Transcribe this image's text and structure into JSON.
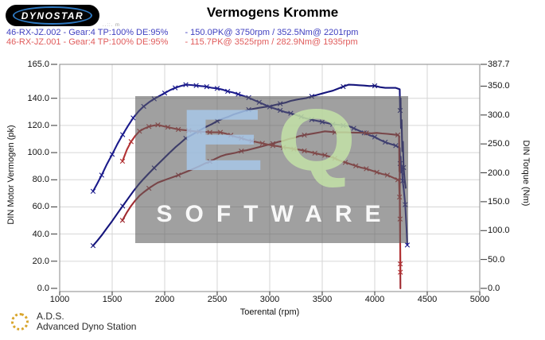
{
  "header": {
    "logo_text": "Dynostar",
    "logo_subtext": "..::. m",
    "title": "Vermogens Kromme"
  },
  "legend": [
    {
      "id": "46-RX-JZ.002 - Gear:4 TP:100% DE:95%",
      "result": "- 150.0PK@ 3750rpm / 352.5Nm@ 2201rpm",
      "color": "#4040c0"
    },
    {
      "id": "46-RX-JZ.001 - Gear:4 TP:100% DE:95%",
      "result": "- 115.7PK@ 3525rpm / 282.9Nm@ 1935rpm",
      "color": "#e05b5b"
    }
  ],
  "watermark": {
    "letter_e": "E",
    "letter_q": "Q",
    "caption": "SOFTWARE"
  },
  "footer": {
    "abbr": "A.D.S.",
    "name": "Advanced Dyno Station"
  },
  "chart_data": {
    "type": "line",
    "title": "Vermogens Kromme",
    "xlabel": "Toerental (rpm)",
    "ylabel_left": "DIN Motor Vermogen (pk)",
    "ylabel_right": "DIN Torque (Nm)",
    "xlim": [
      1000,
      5000
    ],
    "ylim_left": [
      0,
      165
    ],
    "ylim_right": [
      0,
      387.7
    ],
    "x_ticks": [
      "1000",
      "1500",
      "2000",
      "2500",
      "3000",
      "3500",
      "4000",
      "4500",
      "5000"
    ],
    "y_ticks_left": [
      "165.0",
      "140.0",
      "120.0",
      "100.0",
      "80.0",
      "60.0",
      "40.0",
      "20.0",
      "0.0"
    ],
    "y_ticks_left_values": [
      165,
      140,
      120,
      100,
      80,
      60,
      40,
      20,
      0
    ],
    "y_ticks_right": [
      "387.7",
      "350.0",
      "300.0",
      "250.0",
      "200.0",
      "150.0",
      "100.0",
      "50.0",
      "0.0"
    ],
    "y_ticks_right_values": [
      387.7,
      350,
      300,
      250,
      200,
      150,
      100,
      50,
      0
    ],
    "grid": true,
    "legend_position": "top-left",
    "series": [
      {
        "name": "power_run_002",
        "run": "46-RX-JZ.002",
        "axis": "left",
        "unit": "pk",
        "peak": "150.0PK@ 3750rpm",
        "color": "#15157c",
        "points": [
          [
            1318,
            31.5
          ],
          [
            1360,
            35.2
          ],
          [
            1400,
            39.1
          ],
          [
            1450,
            44.4
          ],
          [
            1500,
            49.6
          ],
          [
            1550,
            55.2
          ],
          [
            1600,
            60.6
          ],
          [
            1650,
            66.0
          ],
          [
            1700,
            71.4
          ],
          [
            1750,
            76.3
          ],
          [
            1800,
            80.7
          ],
          [
            1850,
            84.8
          ],
          [
            1900,
            88.7
          ],
          [
            1950,
            92.5
          ],
          [
            2000,
            96.3
          ],
          [
            2050,
            100.1
          ],
          [
            2100,
            103.8
          ],
          [
            2150,
            107.1
          ],
          [
            2201,
            110.5
          ],
          [
            2250,
            112.7
          ],
          [
            2300,
            114.9
          ],
          [
            2350,
            117.1
          ],
          [
            2400,
            119.2
          ],
          [
            2450,
            121.0
          ],
          [
            2500,
            123.2
          ],
          [
            2550,
            124.9
          ],
          [
            2600,
            126.2
          ],
          [
            2650,
            127.9
          ],
          [
            2700,
            129.2
          ],
          [
            2750,
            130.4
          ],
          [
            2800,
            131.6
          ],
          [
            2850,
            132.3
          ],
          [
            2900,
            133.0
          ],
          [
            2950,
            133.6
          ],
          [
            3000,
            134.1
          ],
          [
            3050,
            135.1
          ],
          [
            3100,
            136.0
          ],
          [
            3150,
            136.8
          ],
          [
            3200,
            138.1
          ],
          [
            3250,
            138.9
          ],
          [
            3300,
            139.6
          ],
          [
            3350,
            140.2
          ],
          [
            3400,
            141.4
          ],
          [
            3450,
            142.5
          ],
          [
            3500,
            143.5
          ],
          [
            3550,
            144.6
          ],
          [
            3600,
            145.6
          ],
          [
            3650,
            147.1
          ],
          [
            3700,
            148.6
          ],
          [
            3750,
            150.0
          ],
          [
            3800,
            149.9
          ],
          [
            3850,
            149.6
          ],
          [
            3900,
            149.4
          ],
          [
            3950,
            149.0
          ],
          [
            4000,
            149.2
          ],
          [
            4050,
            148.2
          ],
          [
            4100,
            147.7
          ],
          [
            4150,
            147.7
          ],
          [
            4200,
            147.7
          ],
          [
            4238,
            146.6
          ],
          [
            4242,
            131
          ],
          [
            4246,
            140
          ],
          [
            4250,
            118
          ],
          [
            4256,
            124
          ],
          [
            4262,
            101
          ],
          [
            4268,
            108
          ],
          [
            4275,
            89
          ],
          [
            4285,
            80
          ],
          [
            4295,
            74
          ]
        ]
      },
      {
        "name": "torque_run_002",
        "run": "46-RX-JZ.002",
        "axis": "right",
        "unit": "Nm",
        "peak": "352.5Nm@ 2201rpm",
        "color": "#1b1b8c",
        "points": [
          [
            1318,
            168
          ],
          [
            1360,
            182
          ],
          [
            1400,
            196
          ],
          [
            1450,
            215
          ],
          [
            1500,
            232
          ],
          [
            1550,
            250
          ],
          [
            1600,
            266
          ],
          [
            1650,
            281
          ],
          [
            1700,
            295
          ],
          [
            1750,
            306
          ],
          [
            1800,
            315
          ],
          [
            1850,
            322
          ],
          [
            1900,
            328
          ],
          [
            1950,
            333
          ],
          [
            2000,
            338
          ],
          [
            2050,
            343
          ],
          [
            2100,
            347
          ],
          [
            2150,
            350
          ],
          [
            2201,
            352.5
          ],
          [
            2250,
            352
          ],
          [
            2300,
            351
          ],
          [
            2350,
            350
          ],
          [
            2400,
            349
          ],
          [
            2450,
            347
          ],
          [
            2500,
            346
          ],
          [
            2550,
            344
          ],
          [
            2600,
            341
          ],
          [
            2650,
            339
          ],
          [
            2700,
            336
          ],
          [
            2750,
            333
          ],
          [
            2800,
            330
          ],
          [
            2850,
            326
          ],
          [
            2900,
            322
          ],
          [
            2950,
            318
          ],
          [
            3000,
            314
          ],
          [
            3050,
            311
          ],
          [
            3100,
            308
          ],
          [
            3150,
            305
          ],
          [
            3200,
            303
          ],
          [
            3250,
            300
          ],
          [
            3300,
            297
          ],
          [
            3350,
            294
          ],
          [
            3400,
            292
          ],
          [
            3450,
            290
          ],
          [
            3500,
            288
          ],
          [
            3550,
            286
          ],
          [
            3600,
            284
          ],
          [
            3650,
            283
          ],
          [
            3700,
            282
          ],
          [
            3750,
            281
          ],
          [
            3800,
            277
          ],
          [
            3850,
            273
          ],
          [
            3900,
            269
          ],
          [
            3950,
            265
          ],
          [
            4000,
            262
          ],
          [
            4050,
            257
          ],
          [
            4100,
            253
          ],
          [
            4150,
            250
          ],
          [
            4200,
            247
          ],
          [
            4238,
            243
          ],
          [
            4242,
            216
          ],
          [
            4247,
            228
          ],
          [
            4253,
            201
          ],
          [
            4259,
            209
          ],
          [
            4266,
            186
          ],
          [
            4276,
            172
          ],
          [
            4290,
            145
          ],
          [
            4302,
            105
          ],
          [
            4310,
            75
          ]
        ]
      },
      {
        "name": "power_run_001",
        "run": "46-RX-JZ.001",
        "axis": "left",
        "unit": "pk",
        "peak": "115.7PK@ 3525rpm",
        "color": "#a02a30",
        "points": [
          [
            1598,
            50.1
          ],
          [
            1640,
            56.0
          ],
          [
            1680,
            60.8
          ],
          [
            1720,
            64.7
          ],
          [
            1760,
            68.2
          ],
          [
            1800,
            70.8
          ],
          [
            1850,
            73.7
          ],
          [
            1900,
            76.3
          ],
          [
            1935,
            77.9
          ],
          [
            1980,
            79.2
          ],
          [
            2030,
            80.6
          ],
          [
            2080,
            82.0
          ],
          [
            2130,
            83.4
          ],
          [
            2180,
            85.1
          ],
          [
            2230,
            86.6
          ],
          [
            2280,
            88.3
          ],
          [
            2330,
            90.0
          ],
          [
            2380,
            91.9
          ],
          [
            2430,
            93.4
          ],
          [
            2480,
            95.3
          ],
          [
            2530,
            97.2
          ],
          [
            2580,
            98.5
          ],
          [
            2630,
            99.2
          ],
          [
            2680,
            100.0
          ],
          [
            2730,
            101.1
          ],
          [
            2780,
            101.7
          ],
          [
            2830,
            102.7
          ],
          [
            2880,
            103.7
          ],
          [
            2930,
            104.7
          ],
          [
            2980,
            105.7
          ],
          [
            3030,
            106.6
          ],
          [
            3080,
            107.9
          ],
          [
            3130,
            108.7
          ],
          [
            3180,
            110.0
          ],
          [
            3230,
            110.8
          ],
          [
            3280,
            112.1
          ],
          [
            3330,
            112.9
          ],
          [
            3380,
            113.6
          ],
          [
            3430,
            114.3
          ],
          [
            3480,
            115.0
          ],
          [
            3525,
            115.7
          ],
          [
            3570,
            115.4
          ],
          [
            3620,
            114.9
          ],
          [
            3670,
            115.0
          ],
          [
            3720,
            114.9
          ],
          [
            3770,
            114.8
          ],
          [
            3820,
            114.7
          ],
          [
            3870,
            114.6
          ],
          [
            3920,
            114.4
          ],
          [
            3970,
            114.2
          ],
          [
            4020,
            114.5
          ],
          [
            4070,
            114.1
          ],
          [
            4120,
            113.8
          ],
          [
            4170,
            113.4
          ],
          [
            4220,
            113.0
          ],
          [
            4232,
            112.1
          ],
          [
            4235,
            86
          ],
          [
            4237,
            95
          ],
          [
            4239,
            60
          ],
          [
            4241,
            51
          ],
          [
            4243,
            18
          ],
          [
            4245,
            0
          ]
        ]
      },
      {
        "name": "torque_run_001",
        "run": "46-RX-JZ.001",
        "axis": "right",
        "unit": "Nm",
        "peak": "282.9Nm@ 1935rpm",
        "color": "#b23234",
        "points": [
          [
            1598,
            220
          ],
          [
            1640,
            240
          ],
          [
            1680,
            254
          ],
          [
            1720,
            264
          ],
          [
            1760,
            272
          ],
          [
            1800,
            276
          ],
          [
            1850,
            280
          ],
          [
            1900,
            282
          ],
          [
            1935,
            282.9
          ],
          [
            1980,
            281
          ],
          [
            2030,
            279
          ],
          [
            2080,
            277
          ],
          [
            2130,
            275
          ],
          [
            2180,
            274
          ],
          [
            2230,
            273
          ],
          [
            2280,
            272
          ],
          [
            2330,
            271
          ],
          [
            2380,
            271
          ],
          [
            2430,
            270
          ],
          [
            2480,
            270
          ],
          [
            2530,
            270
          ],
          [
            2580,
            268
          ],
          [
            2630,
            265
          ],
          [
            2680,
            262
          ],
          [
            2730,
            260
          ],
          [
            2780,
            257
          ],
          [
            2830,
            255
          ],
          [
            2880,
            253
          ],
          [
            2930,
            251
          ],
          [
            2980,
            249
          ],
          [
            3030,
            247
          ],
          [
            3080,
            246
          ],
          [
            3130,
            244
          ],
          [
            3180,
            243
          ],
          [
            3230,
            241
          ],
          [
            3280,
            240
          ],
          [
            3330,
            238
          ],
          [
            3380,
            236
          ],
          [
            3430,
            234
          ],
          [
            3480,
            232
          ],
          [
            3525,
            230.5
          ],
          [
            3570,
            228
          ],
          [
            3620,
            225
          ],
          [
            3670,
            221
          ],
          [
            3720,
            218
          ],
          [
            3770,
            215
          ],
          [
            3820,
            212
          ],
          [
            3870,
            209
          ],
          [
            3920,
            207
          ],
          [
            3970,
            204
          ],
          [
            4020,
            201
          ],
          [
            4070,
            198
          ],
          [
            4120,
            196
          ],
          [
            4170,
            192
          ],
          [
            4220,
            188
          ],
          [
            4232,
            186
          ],
          [
            4236,
            158
          ],
          [
            4239,
            165
          ],
          [
            4241,
            120
          ],
          [
            4243,
            60
          ],
          [
            4244,
            28
          ]
        ]
      }
    ]
  }
}
